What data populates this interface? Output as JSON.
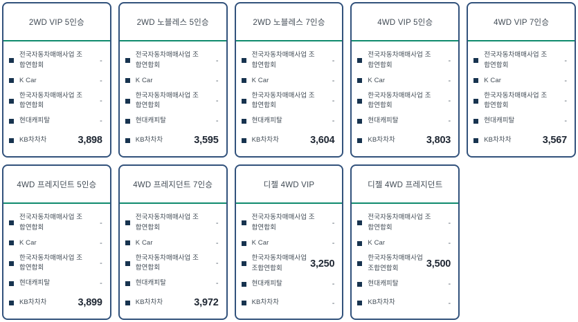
{
  "colors": {
    "card_border": "#31517b",
    "header_divider": "#0e8a6d",
    "bullet": "#17334f",
    "label_text": "#414b55",
    "price_text": "#1f2733"
  },
  "cards": [
    {
      "title": "2WD VIP 5인승",
      "rows": [
        {
          "label": "전국자동차매매사업 조합연합회",
          "value": "-"
        },
        {
          "label": "K Car",
          "value": "-"
        },
        {
          "label": "한국자동차매매사업 조합연합회",
          "value": "-"
        },
        {
          "label": "현대캐피탈",
          "value": "-"
        },
        {
          "label": "KB차차차",
          "value": "3,898"
        }
      ]
    },
    {
      "title": "2WD 노블레스 5인승",
      "rows": [
        {
          "label": "전국자동차매매사업 조합연합회",
          "value": "-"
        },
        {
          "label": "K Car",
          "value": "-"
        },
        {
          "label": "한국자동차매매사업 조합연합회",
          "value": "-"
        },
        {
          "label": "현대캐피탈",
          "value": "-"
        },
        {
          "label": "KB차차차",
          "value": "3,595"
        }
      ]
    },
    {
      "title": "2WD 노블레스 7인승",
      "rows": [
        {
          "label": "전국자동차매매사업 조합연합회",
          "value": "-"
        },
        {
          "label": "K Car",
          "value": "-"
        },
        {
          "label": "한국자동차매매사업 조합연합회",
          "value": "-"
        },
        {
          "label": "현대캐피탈",
          "value": "-"
        },
        {
          "label": "KB차차차",
          "value": "3,604"
        }
      ]
    },
    {
      "title": "4WD VIP 5인승",
      "rows": [
        {
          "label": "전국자동차매매사업 조합연합회",
          "value": "-"
        },
        {
          "label": "K Car",
          "value": "-"
        },
        {
          "label": "한국자동차매매사업 조합연합회",
          "value": "-"
        },
        {
          "label": "현대캐피탈",
          "value": "-"
        },
        {
          "label": "KB차차차",
          "value": "3,803"
        }
      ]
    },
    {
      "title": "4WD VIP 7인승",
      "rows": [
        {
          "label": "전국자동차매매사업 조합연합회",
          "value": "-"
        },
        {
          "label": "K Car",
          "value": "-"
        },
        {
          "label": "한국자동차매매사업 조합연합회",
          "value": "-"
        },
        {
          "label": "현대캐피탈",
          "value": "-"
        },
        {
          "label": "KB차차차",
          "value": "3,567"
        }
      ]
    },
    {
      "title": "4WD 프레지던트 5인승",
      "rows": [
        {
          "label": "전국자동차매매사업 조합연합회",
          "value": "-"
        },
        {
          "label": "K Car",
          "value": "-"
        },
        {
          "label": "한국자동차매매사업 조합연합회",
          "value": "-"
        },
        {
          "label": "현대캐피탈",
          "value": "-"
        },
        {
          "label": "KB차차차",
          "value": "3,899"
        }
      ]
    },
    {
      "title": "4WD 프레지던트 7인승",
      "rows": [
        {
          "label": "전국자동차매매사업 조합연합회",
          "value": "-"
        },
        {
          "label": "K Car",
          "value": "-"
        },
        {
          "label": "한국자동차매매사업 조합연합회",
          "value": "-"
        },
        {
          "label": "현대캐피탈",
          "value": "-"
        },
        {
          "label": "KB차차차",
          "value": "3,972"
        }
      ]
    },
    {
      "title": "디젤 4WD VIP",
      "rows": [
        {
          "label": "전국자동차매매사업 조합연합회",
          "value": "-"
        },
        {
          "label": "K Car",
          "value": "-"
        },
        {
          "label": "한국자동차매매사업 조합연합회",
          "value": "3,250"
        },
        {
          "label": "현대캐피탈",
          "value": "-"
        },
        {
          "label": "KB차차차",
          "value": "-"
        }
      ]
    },
    {
      "title": "디젤 4WD 프레지던트",
      "rows": [
        {
          "label": "전국자동차매매사업 조합연합회",
          "value": "-"
        },
        {
          "label": "K Car",
          "value": "-"
        },
        {
          "label": "한국자동차매매사업 조합연합회",
          "value": "3,500"
        },
        {
          "label": "현대캐피탈",
          "value": "-"
        },
        {
          "label": "KB차차차",
          "value": "-"
        }
      ]
    }
  ]
}
